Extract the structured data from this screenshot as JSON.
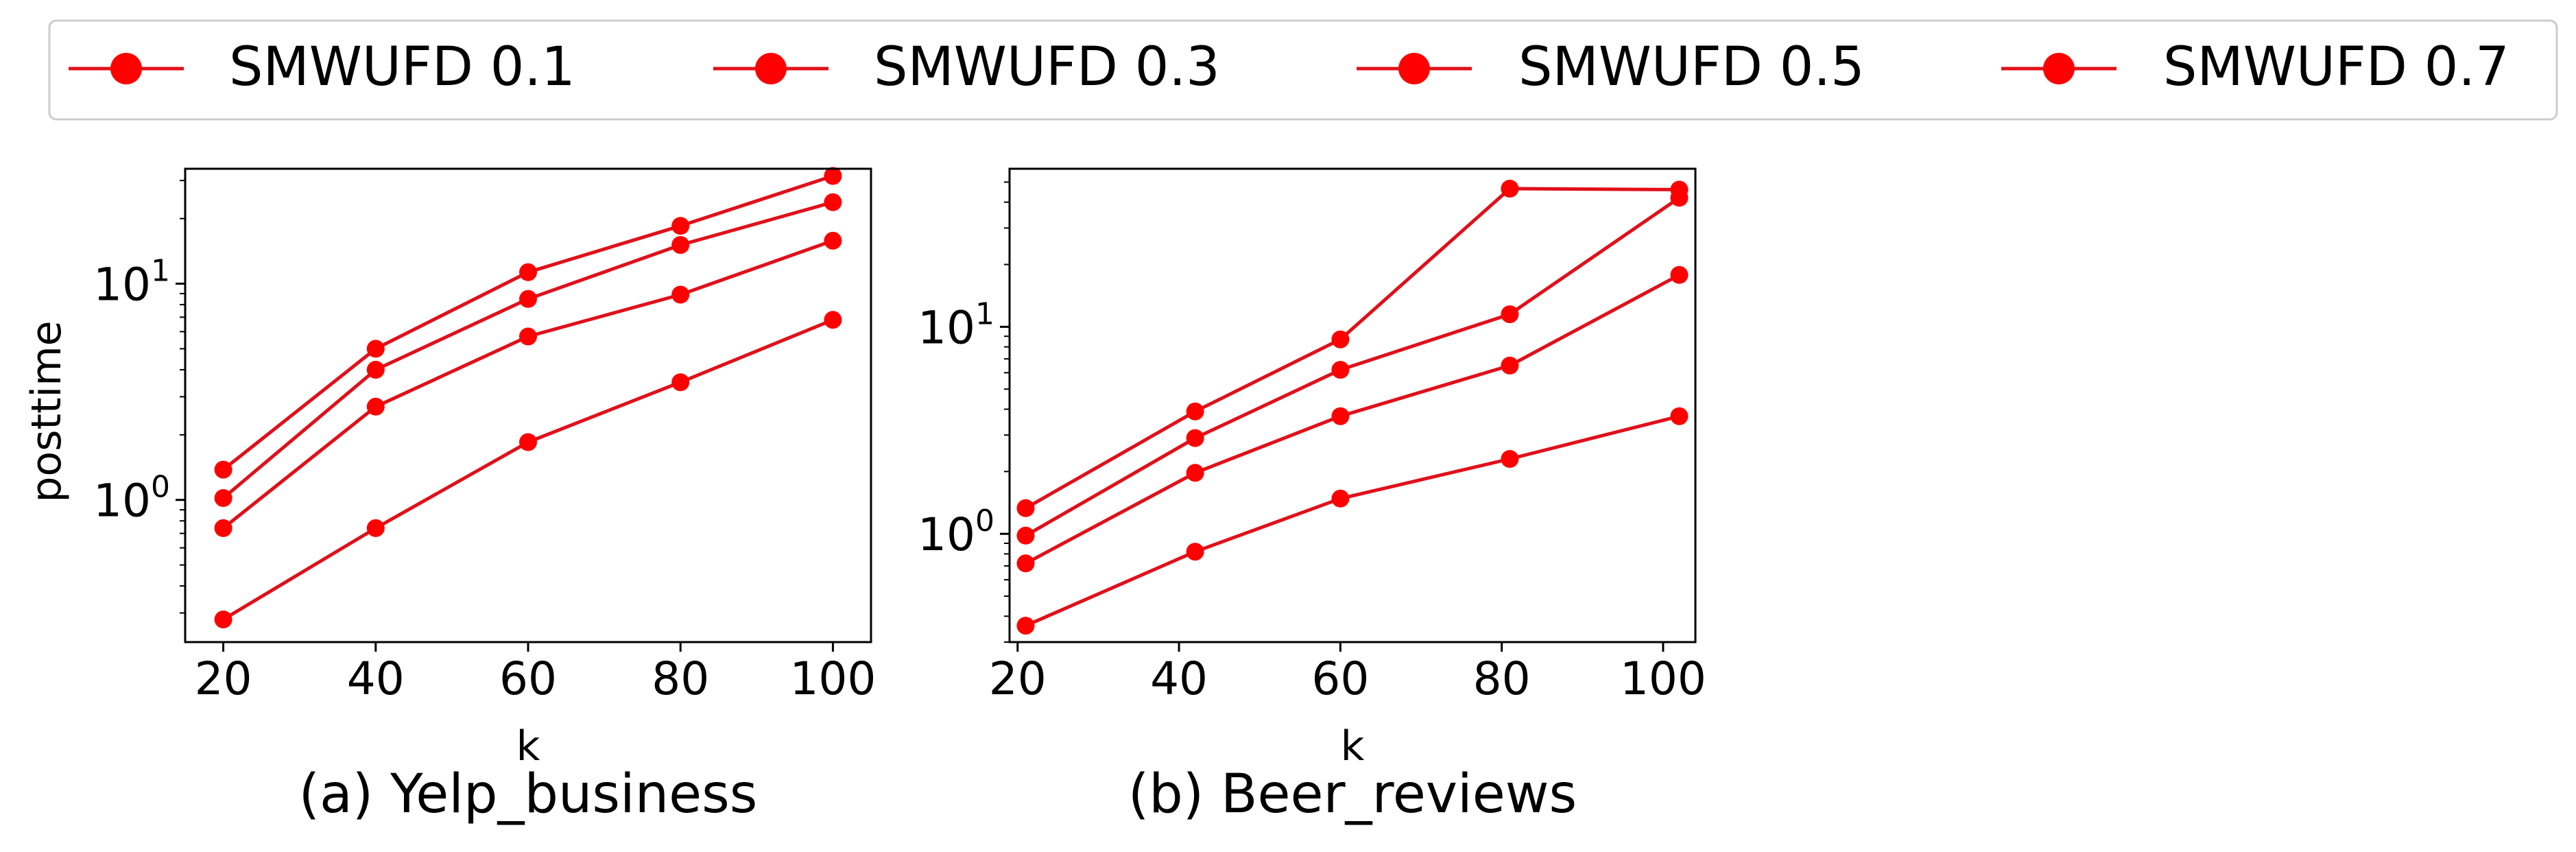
{
  "legend": {
    "placement": "top",
    "entries": [
      "SMWUFD 0.1",
      "SMWUFD 0.3",
      "SMWUFD 0.5",
      "SMWUFD 0.7"
    ]
  },
  "colors": {
    "series": "#ff0000",
    "line": "#e0101a",
    "frame": "#000000",
    "legend_border": "#cccccc"
  },
  "chart_data": [
    {
      "type": "line",
      "caption": "(a) Yelp_business",
      "xlabel": "k",
      "ylabel": "posttime",
      "yscale": "log",
      "xlim": [
        15,
        105
      ],
      "ylim": [
        0.22,
        34
      ],
      "xticks": [
        20,
        40,
        60,
        80,
        100
      ],
      "xtick_labels": [
        "20",
        "40",
        "60",
        "80",
        "100"
      ],
      "yticks": [
        1,
        10
      ],
      "ytick_labels": [
        {
          "base": "10",
          "exp": "0"
        },
        {
          "base": "10",
          "exp": "1"
        }
      ],
      "grid": false,
      "x": [
        20,
        40,
        60,
        80,
        100
      ],
      "series": [
        {
          "name": "SMWUFD 0.1",
          "values": [
            0.28,
            0.74,
            1.85,
            3.5,
            6.8
          ]
        },
        {
          "name": "SMWUFD 0.3",
          "values": [
            0.74,
            2.7,
            5.7,
            8.9,
            15.8
          ]
        },
        {
          "name": "SMWUFD 0.5",
          "values": [
            1.02,
            4.0,
            8.5,
            15.1,
            23.8
          ]
        },
        {
          "name": "SMWUFD 0.7",
          "values": [
            1.38,
            5.0,
            11.3,
            18.5,
            31.5
          ]
        }
      ]
    },
    {
      "type": "line",
      "caption": "(b) Beer_reviews",
      "xlabel": "k",
      "ylabel": "",
      "yscale": "log",
      "xlim": [
        19,
        104
      ],
      "ylim": [
        0.3,
        58
      ],
      "xticks": [
        20,
        40,
        60,
        80,
        100
      ],
      "xtick_labels": [
        "20",
        "40",
        "60",
        "80",
        "100"
      ],
      "yticks": [
        1,
        10
      ],
      "ytick_labels": [
        {
          "base": "10",
          "exp": "0"
        },
        {
          "base": "10",
          "exp": "1"
        }
      ],
      "grid": false,
      "x": [
        21,
        42,
        60,
        81,
        102
      ],
      "series": [
        {
          "name": "SMWUFD 0.1",
          "values": [
            0.36,
            0.82,
            1.48,
            2.3,
            3.7
          ]
        },
        {
          "name": "SMWUFD 0.3",
          "values": [
            0.72,
            1.97,
            3.7,
            6.5,
            17.8
          ]
        },
        {
          "name": "SMWUFD 0.5",
          "values": [
            0.98,
            2.9,
            6.2,
            11.5,
            42.0
          ]
        },
        {
          "name": "SMWUFD 0.7",
          "values": [
            1.33,
            3.9,
            8.7,
            46.5,
            46.0
          ]
        }
      ]
    }
  ]
}
